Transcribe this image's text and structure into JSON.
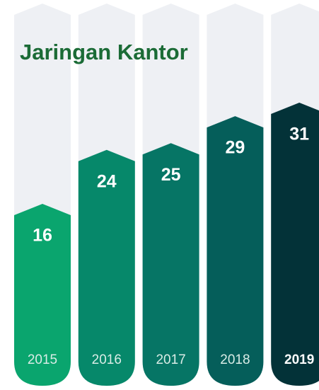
{
  "chart_data": {
    "type": "bar",
    "title": "Jaringan Kantor",
    "categories": [
      "2015",
      "2016",
      "2017",
      "2018",
      "2019"
    ],
    "values": [
      16,
      24,
      25,
      29,
      31
    ],
    "colors": [
      "#0aa56e",
      "#06886a",
      "#067565",
      "#055e5a",
      "#033238"
    ]
  }
}
